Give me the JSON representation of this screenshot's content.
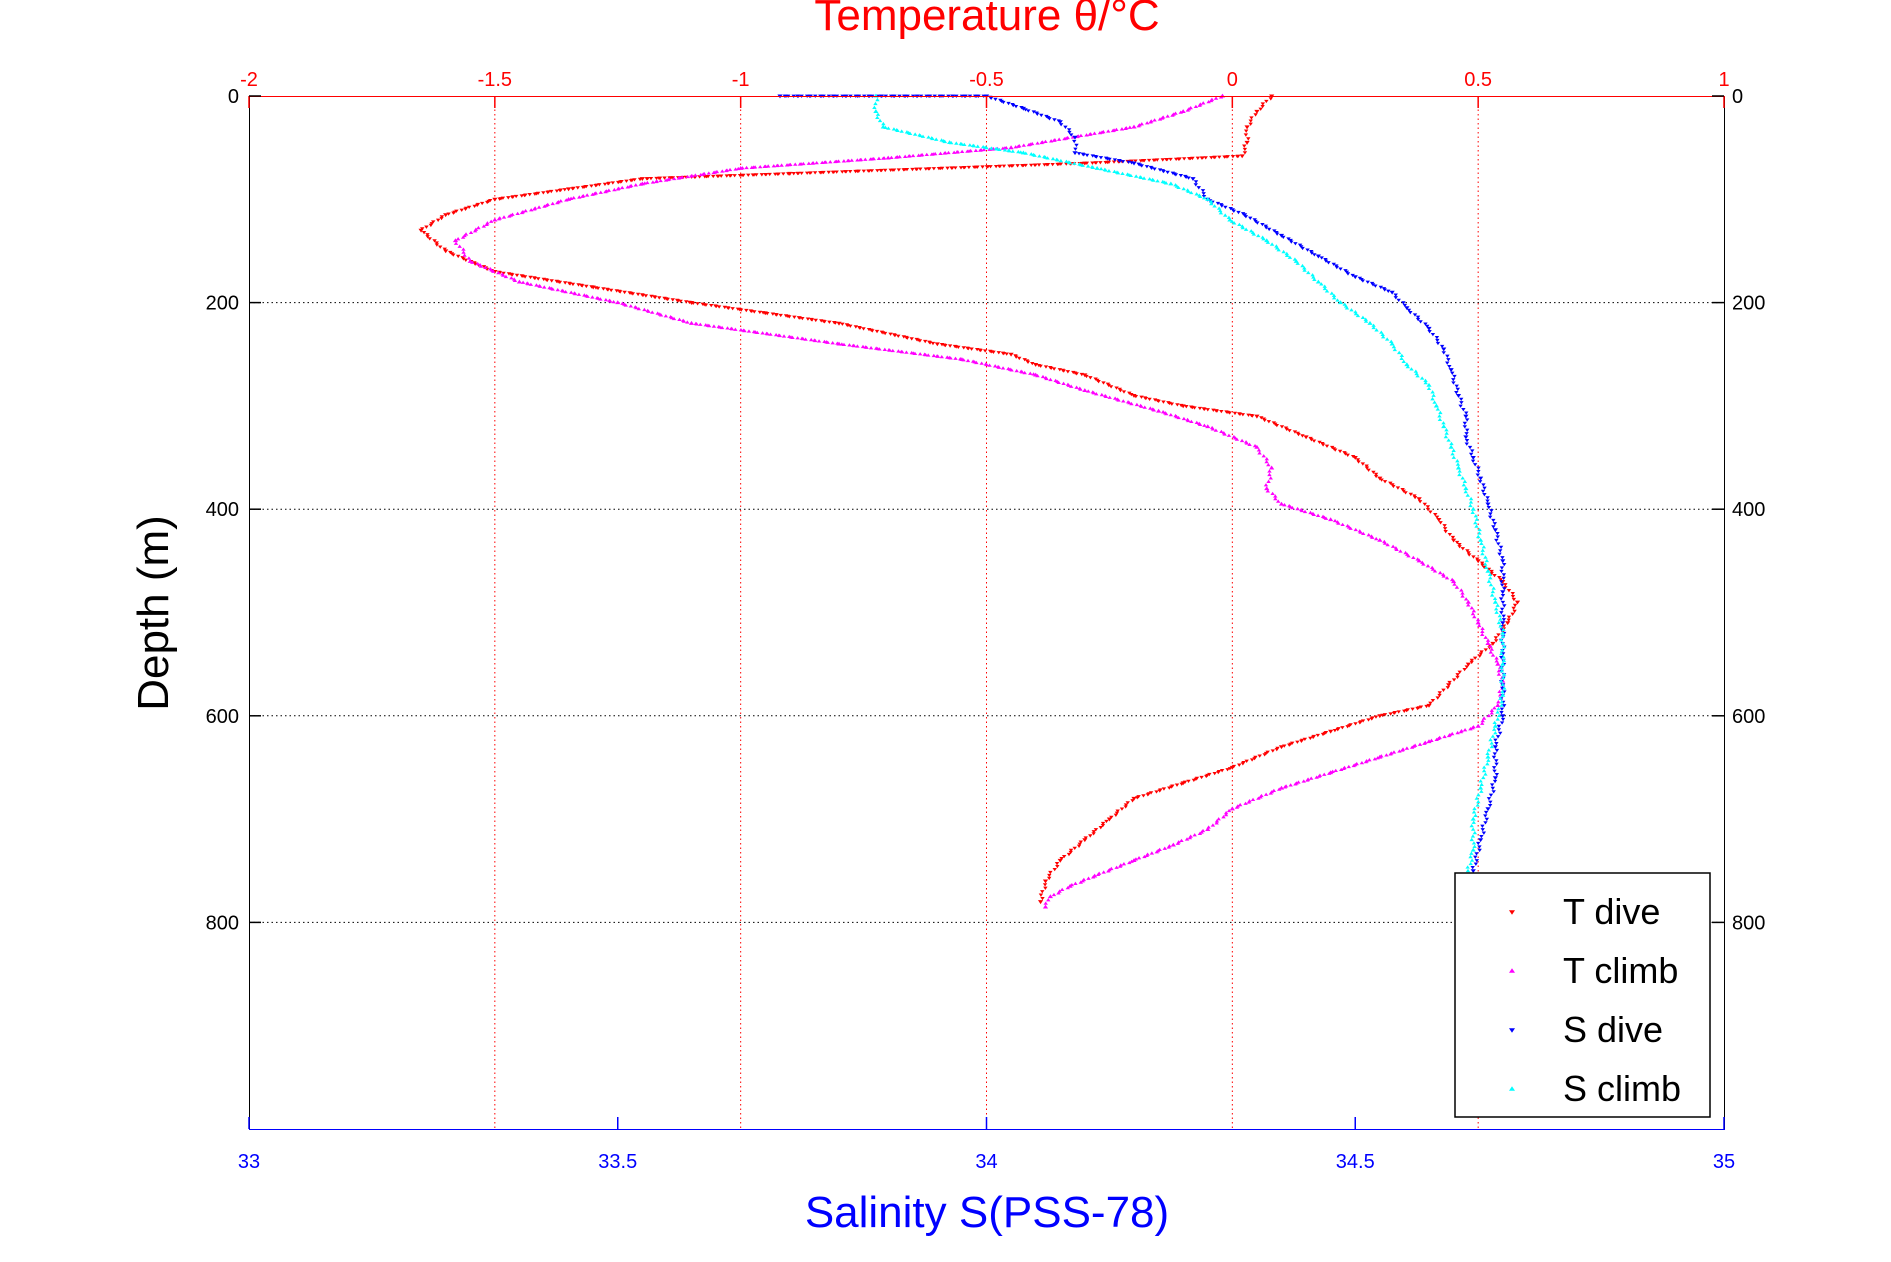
{
  "chart_data": {
    "type": "scatter",
    "title": "",
    "top_axis": {
      "label": "Temperature θ/°C",
      "range": [
        -2,
        1
      ],
      "ticks": [
        "-2",
        "-1.5",
        "-1",
        "-0.5",
        "0",
        "0.5",
        "1"
      ],
      "color": "#ff0000"
    },
    "bottom_axis": {
      "label": "Salinity S(PSS-78)",
      "range": [
        33,
        35
      ],
      "ticks": [
        "33",
        "33.5",
        "34",
        "34.5",
        "35"
      ],
      "color": "#0000ff"
    },
    "y_axis": {
      "label": "Depth (m)",
      "range": [
        0,
        1000
      ],
      "reversed": true,
      "ticks": [
        "0",
        "200",
        "400",
        "600",
        "800"
      ]
    },
    "grid": true,
    "legend": {
      "placement": "bottom-right",
      "entries": [
        "T dive",
        "T climb",
        "S dive",
        "S climb"
      ]
    },
    "series": [
      {
        "name": "T dive",
        "axis": "top",
        "marker": "triangle-down",
        "color": "#ff0000",
        "points": [
          [
            0.08,
            0
          ],
          [
            0.05,
            15
          ],
          [
            0.03,
            30
          ],
          [
            0.03,
            45
          ],
          [
            0.02,
            58
          ],
          [
            -0.3,
            65
          ],
          [
            -0.9,
            75
          ],
          [
            -1.2,
            80
          ],
          [
            -1.35,
            90
          ],
          [
            -1.5,
            100
          ],
          [
            -1.6,
            115
          ],
          [
            -1.65,
            130
          ],
          [
            -1.6,
            150
          ],
          [
            -1.5,
            170
          ],
          [
            -1.3,
            185
          ],
          [
            -1.1,
            200
          ],
          [
            -0.95,
            210
          ],
          [
            -0.8,
            220
          ],
          [
            -0.6,
            240
          ],
          [
            -0.45,
            250
          ],
          [
            -0.4,
            260
          ],
          [
            -0.3,
            270
          ],
          [
            -0.2,
            290
          ],
          [
            -0.1,
            300
          ],
          [
            0.05,
            310
          ],
          [
            0.15,
            330
          ],
          [
            0.25,
            350
          ],
          [
            0.3,
            370
          ],
          [
            0.38,
            390
          ],
          [
            0.42,
            410
          ],
          [
            0.45,
            430
          ],
          [
            0.5,
            450
          ],
          [
            0.55,
            470
          ],
          [
            0.58,
            490
          ],
          [
            0.56,
            510
          ],
          [
            0.53,
            530
          ],
          [
            0.48,
            550
          ],
          [
            0.44,
            570
          ],
          [
            0.4,
            590
          ],
          [
            0.3,
            600
          ],
          [
            0.2,
            615
          ],
          [
            0.1,
            630
          ],
          [
            0.0,
            650
          ],
          [
            -0.1,
            665
          ],
          [
            -0.2,
            680
          ],
          [
            -0.25,
            700
          ],
          [
            -0.3,
            720
          ],
          [
            -0.35,
            740
          ],
          [
            -0.38,
            760
          ],
          [
            -0.39,
            780
          ]
        ]
      },
      {
        "name": "T climb",
        "axis": "top",
        "marker": "triangle-up",
        "color": "#ff00ff",
        "points": [
          [
            -0.02,
            0
          ],
          [
            -0.1,
            15
          ],
          [
            -0.2,
            30
          ],
          [
            -0.45,
            50
          ],
          [
            -0.7,
            60
          ],
          [
            -1.0,
            70
          ],
          [
            -1.2,
            85
          ],
          [
            -1.35,
            100
          ],
          [
            -1.5,
            120
          ],
          [
            -1.58,
            140
          ],
          [
            -1.55,
            160
          ],
          [
            -1.45,
            180
          ],
          [
            -1.25,
            200
          ],
          [
            -1.1,
            220
          ],
          [
            -0.8,
            240
          ],
          [
            -0.55,
            255
          ],
          [
            -0.4,
            270
          ],
          [
            -0.3,
            285
          ],
          [
            -0.15,
            305
          ],
          [
            -0.05,
            320
          ],
          [
            0.05,
            340
          ],
          [
            0.08,
            360
          ],
          [
            0.07,
            380
          ],
          [
            0.1,
            395
          ],
          [
            0.2,
            410
          ],
          [
            0.3,
            430
          ],
          [
            0.38,
            450
          ],
          [
            0.45,
            470
          ],
          [
            0.48,
            490
          ],
          [
            0.5,
            510
          ],
          [
            0.52,
            530
          ],
          [
            0.54,
            550
          ],
          [
            0.55,
            570
          ],
          [
            0.54,
            590
          ],
          [
            0.5,
            610
          ],
          [
            0.4,
            625
          ],
          [
            0.3,
            640
          ],
          [
            0.2,
            655
          ],
          [
            0.1,
            670
          ],
          [
            0.0,
            690
          ],
          [
            -0.05,
            710
          ],
          [
            -0.12,
            725
          ],
          [
            -0.2,
            740
          ],
          [
            -0.28,
            755
          ],
          [
            -0.33,
            765
          ],
          [
            -0.37,
            775
          ],
          [
            -0.38,
            785
          ]
        ]
      },
      {
        "name": "S dive",
        "axis": "bottom",
        "marker": "triangle-down",
        "color": "#0000ff",
        "points": [
          [
            33.72,
            0
          ],
          [
            34.0,
            0
          ],
          [
            34.05,
            12
          ],
          [
            34.1,
            25
          ],
          [
            34.12,
            40
          ],
          [
            34.12,
            55
          ],
          [
            34.2,
            65
          ],
          [
            34.28,
            80
          ],
          [
            34.3,
            100
          ],
          [
            34.35,
            115
          ],
          [
            34.4,
            135
          ],
          [
            34.45,
            155
          ],
          [
            34.5,
            175
          ],
          [
            34.55,
            190
          ],
          [
            34.57,
            205
          ],
          [
            34.6,
            225
          ],
          [
            34.62,
            245
          ],
          [
            34.63,
            265
          ],
          [
            34.64,
            290
          ],
          [
            34.65,
            310
          ],
          [
            34.65,
            330
          ],
          [
            34.66,
            350
          ],
          [
            34.67,
            370
          ],
          [
            34.68,
            395
          ],
          [
            34.69,
            420
          ],
          [
            34.7,
            450
          ],
          [
            34.7,
            480
          ],
          [
            34.7,
            510
          ],
          [
            34.7,
            540
          ],
          [
            34.7,
            570
          ],
          [
            34.7,
            600
          ],
          [
            34.69,
            630
          ],
          [
            34.69,
            660
          ],
          [
            34.68,
            690
          ],
          [
            34.67,
            720
          ],
          [
            34.66,
            750
          ],
          [
            34.65,
            780
          ]
        ]
      },
      {
        "name": "S climb",
        "axis": "bottom",
        "marker": "triangle-up",
        "color": "#00ffff",
        "points": [
          [
            33.85,
            0
          ],
          [
            33.85,
            15
          ],
          [
            33.86,
            30
          ],
          [
            33.95,
            45
          ],
          [
            34.05,
            55
          ],
          [
            34.15,
            70
          ],
          [
            34.25,
            85
          ],
          [
            34.3,
            100
          ],
          [
            34.33,
            120
          ],
          [
            34.38,
            140
          ],
          [
            34.42,
            160
          ],
          [
            34.45,
            180
          ],
          [
            34.48,
            200
          ],
          [
            34.52,
            220
          ],
          [
            34.55,
            240
          ],
          [
            34.57,
            260
          ],
          [
            34.6,
            280
          ],
          [
            34.61,
            300
          ],
          [
            34.62,
            320
          ],
          [
            34.63,
            340
          ],
          [
            34.64,
            360
          ],
          [
            34.65,
            380
          ],
          [
            34.66,
            400
          ],
          [
            34.67,
            430
          ],
          [
            34.68,
            460
          ],
          [
            34.69,
            490
          ],
          [
            34.7,
            520
          ],
          [
            34.7,
            550
          ],
          [
            34.7,
            580
          ],
          [
            34.69,
            610
          ],
          [
            34.68,
            640
          ],
          [
            34.67,
            670
          ],
          [
            34.66,
            700
          ],
          [
            34.66,
            730
          ],
          [
            34.65,
            760
          ],
          [
            34.65,
            785
          ]
        ]
      }
    ]
  }
}
